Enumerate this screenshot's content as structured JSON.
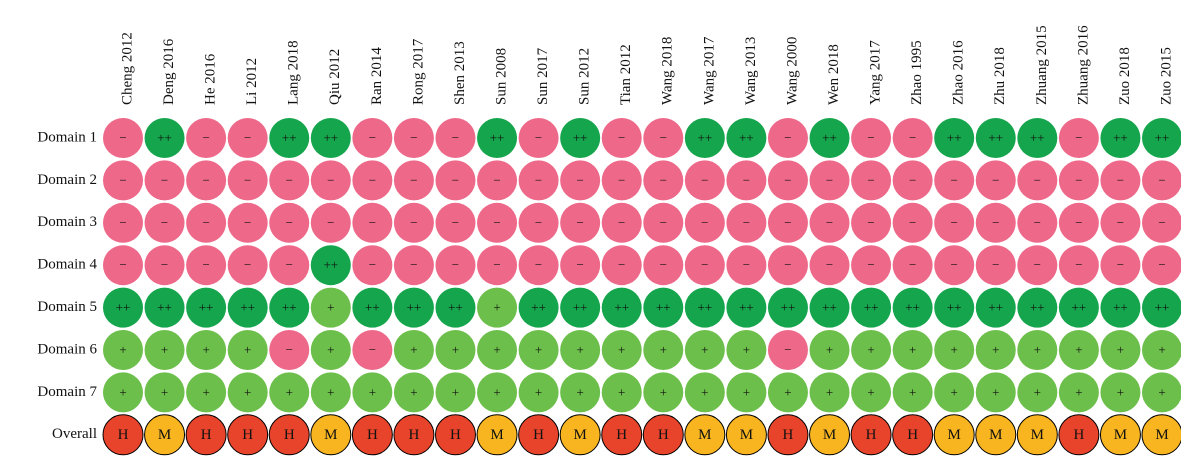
{
  "studies": [
    "Cheng 2012",
    "Deng 2016",
    "He 2016",
    "Li 2012",
    "Lang 2018",
    "Qiu 2012",
    "Ran 2014",
    "Rong 2017",
    "Shen 2013",
    "Sun 2008",
    "Sun 2017",
    "Sun 2012",
    "Tian 2012",
    "Wang 2018",
    "Wang 2017",
    "Wang 2013",
    "Wang 2000",
    "Wen 2018",
    "Yang 2017",
    "Zhao 1995",
    "Zhao 2016",
    "Zhu 2018",
    "Zhuang 2015",
    "Zhuang 2016",
    "Zuo 2018",
    "Zuo 2015"
  ],
  "rows": [
    {
      "label": "Domain 1",
      "cells": [
        "−",
        "++",
        "−",
        "−",
        "++",
        "++",
        "−",
        "−",
        "−",
        "++",
        "−",
        "++",
        "−",
        "−",
        "++",
        "++",
        "−",
        "++",
        "−",
        "−",
        "++",
        "++",
        "++",
        "−",
        "++",
        "++"
      ]
    },
    {
      "label": "Domain 2",
      "cells": [
        "−",
        "−",
        "−",
        "−",
        "−",
        "−",
        "−",
        "−",
        "−",
        "−",
        "−",
        "−",
        "−",
        "−",
        "−",
        "−",
        "−",
        "−",
        "−",
        "−",
        "−",
        "−",
        "−",
        "−",
        "−",
        "−"
      ]
    },
    {
      "label": "Domain 3",
      "cells": [
        "−",
        "−",
        "−",
        "−",
        "−",
        "−",
        "−",
        "−",
        "−",
        "−",
        "−",
        "−",
        "−",
        "−",
        "−",
        "−",
        "−",
        "−",
        "−",
        "−",
        "−",
        "−",
        "−",
        "−",
        "−",
        "−"
      ]
    },
    {
      "label": "Domain 4",
      "cells": [
        "−",
        "−",
        "−",
        "−",
        "−",
        "++",
        "−",
        "−",
        "−",
        "−",
        "−",
        "−",
        "−",
        "−",
        "−",
        "−",
        "−",
        "−",
        "−",
        "−",
        "−",
        "−",
        "−",
        "−",
        "−",
        "−"
      ]
    },
    {
      "label": "Domain 5",
      "cells": [
        "++",
        "++",
        "++",
        "++",
        "++",
        "+",
        "++",
        "++",
        "++",
        "+",
        "++",
        "++",
        "++",
        "++",
        "++",
        "++",
        "++",
        "++",
        "++",
        "++",
        "++",
        "++",
        "++",
        "++",
        "++",
        "++"
      ]
    },
    {
      "label": "Domain 6",
      "cells": [
        "+",
        "+",
        "+",
        "+",
        "−",
        "+",
        "−",
        "+",
        "+",
        "+",
        "+",
        "+",
        "+",
        "+",
        "+",
        "+",
        "−",
        "+",
        "+",
        "+",
        "+",
        "+",
        "+",
        "+",
        "+",
        "+"
      ]
    },
    {
      "label": "Domain 7",
      "cells": [
        "+",
        "+",
        "+",
        "+",
        "+",
        "+",
        "+",
        "+",
        "+",
        "+",
        "+",
        "+",
        "+",
        "+",
        "+",
        "+",
        "+",
        "+",
        "+",
        "+",
        "+",
        "+",
        "+",
        "+",
        "+",
        "+"
      ]
    },
    {
      "label": "Overall",
      "cells": [
        "H",
        "M",
        "H",
        "H",
        "H",
        "M",
        "H",
        "H",
        "H",
        "M",
        "H",
        "M",
        "H",
        "H",
        "M",
        "M",
        "H",
        "M",
        "H",
        "H",
        "M",
        "M",
        "M",
        "H",
        "M",
        "M"
      ]
    }
  ],
  "colors": {
    "−": "#ee6889",
    "++": "#15a54c",
    "+": "#6cbf4a",
    "H": "#e8442b",
    "M": "#f8b51f"
  }
}
